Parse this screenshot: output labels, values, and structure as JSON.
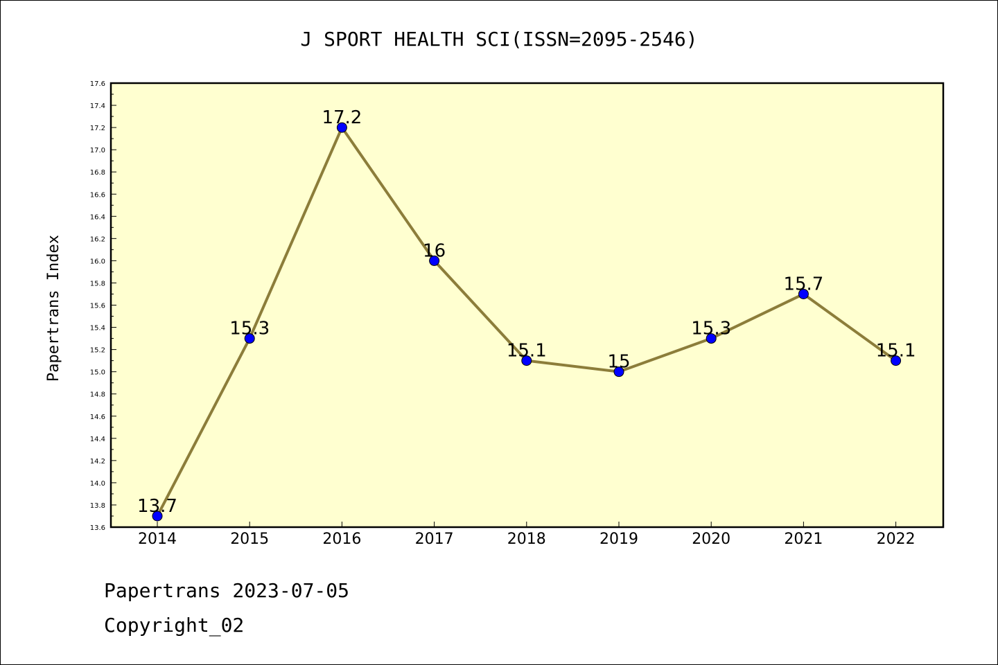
{
  "chart_data": {
    "type": "line",
    "title": "J SPORT HEALTH SCI(ISSN=2095-2546)",
    "xlabel": "",
    "ylabel": "Papertrans Index",
    "x": [
      "2014",
      "2015",
      "2016",
      "2017",
      "2018",
      "2019",
      "2020",
      "2021",
      "2022"
    ],
    "series": [
      {
        "values": [
          13.7,
          15.3,
          17.2,
          16.0,
          15.1,
          15.0,
          15.3,
          15.7,
          15.1
        ],
        "labels": [
          "13.7",
          "15.3",
          "17.2",
          "16",
          "15.1",
          "15",
          "15.3",
          "15.7",
          "15.1"
        ]
      }
    ],
    "ylim": [
      13.6,
      17.6
    ],
    "yticks": [
      "13.6",
      "13.8",
      "14.0",
      "14.2",
      "14.4",
      "14.6",
      "14.8",
      "15.0",
      "15.2",
      "15.4",
      "15.6",
      "15.8",
      "16.0",
      "16.2",
      "16.4",
      "16.6",
      "16.8",
      "17.0",
      "17.2",
      "17.4",
      "17.6"
    ],
    "grid": false,
    "colors": {
      "plot_background": "#ffffd0",
      "line": "#8c7d3a",
      "marker": "#0000ff"
    }
  },
  "footer": {
    "line1": "Papertrans 2023-07-05",
    "line2": "Copyright_02"
  }
}
